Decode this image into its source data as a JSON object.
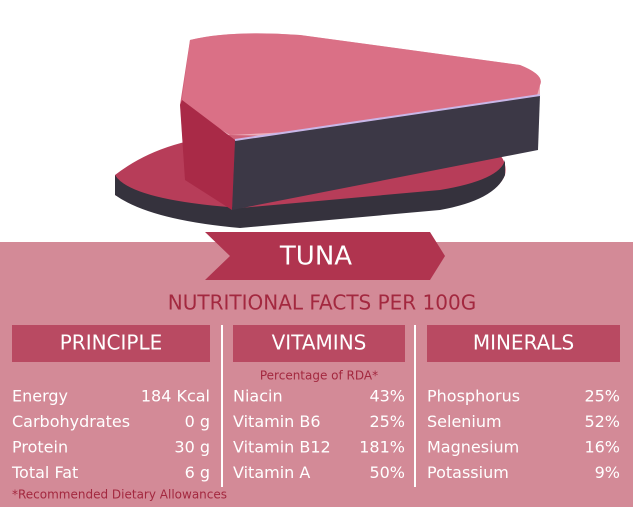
{
  "header": {
    "title": "TUNA",
    "subtitle": "NUTRITIONAL FACTS PER 100G"
  },
  "columns": [
    {
      "heading": "PRINCIPLE",
      "rows": [
        [
          "Energy",
          "184 Kcal"
        ],
        [
          "Carbohydrates",
          "0 g"
        ],
        [
          "Protein",
          "30 g"
        ],
        [
          "Total Fat",
          "6 g"
        ]
      ]
    },
    {
      "heading": "VITAMINS",
      "note": "Percentage of RDA*",
      "rows": [
        [
          "Niacin",
          "43%"
        ],
        [
          "Vitamin B6",
          "25%"
        ],
        [
          "Vitamin B12",
          "181%"
        ],
        [
          "Vitamin A",
          "50%"
        ]
      ]
    },
    {
      "heading": "MINERALS",
      "rows": [
        [
          "Phosphorus",
          "25%"
        ],
        [
          "Selenium",
          "52%"
        ],
        [
          "Magnesium",
          "16%"
        ],
        [
          "Potassium",
          "9%"
        ]
      ]
    }
  ],
  "footnote": "*Recommended Dietary Allowances"
}
